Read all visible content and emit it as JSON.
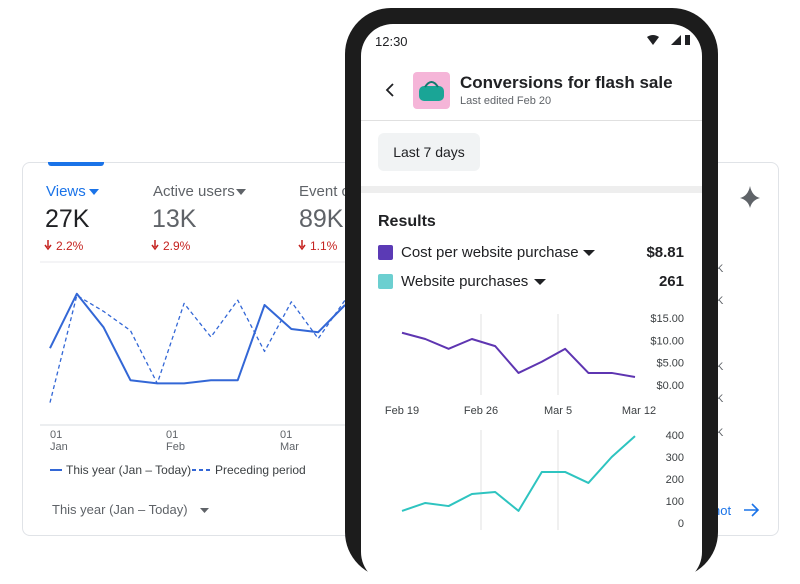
{
  "analytics": {
    "metrics": [
      {
        "label": "Views",
        "value": "27K",
        "change": "2.2%"
      },
      {
        "label": "Active users",
        "value": "13K",
        "change": "2.9%"
      },
      {
        "label": "Event c",
        "value": "89K",
        "change": "1.1%"
      }
    ],
    "chart": {
      "type": "line",
      "ylim": [
        0,
        100
      ],
      "series": [
        {
          "name": "This year (Jan – Today)",
          "color": "#3367d6",
          "style": "solid",
          "values": [
            48,
            82,
            61,
            28,
            26,
            26,
            28,
            28,
            75,
            60,
            58,
            75
          ]
        },
        {
          "name": "Preceding period",
          "color": "#3367d6",
          "style": "dashed",
          "values": [
            14,
            81,
            71,
            59,
            26,
            76,
            55,
            78,
            46,
            77,
            54,
            78
          ]
        }
      ],
      "x_labels": [
        {
          "day": "01",
          "month": "Jan"
        },
        {
          "day": "01",
          "month": "Feb"
        },
        {
          "day": "01",
          "month": "Mar"
        }
      ]
    },
    "period_selector": "This year (Jan – Today)",
    "right_fragments": [
      "K",
      "K",
      "K",
      "K",
      "K"
    ],
    "link": "hot"
  },
  "phone": {
    "status_time": "12:30",
    "title": "Conversions for flash sale",
    "subtitle": "Last edited Feb 20",
    "date_range": "Last 7 days",
    "section_title": "Results",
    "charts": [
      {
        "type": "line",
        "name": "Cost per website purchase",
        "summary": "$8.81",
        "color": "#5e35b1",
        "legend_color": "#5b3ab5",
        "values": [
          11.7,
          10.3,
          8.1,
          10.3,
          8.7,
          2.7,
          5.2,
          8.1,
          2.7,
          2.7,
          1.8
        ],
        "ylim": [
          0,
          15
        ],
        "yticks": [
          {
            "value": 15,
            "label": "$15.00"
          },
          {
            "value": 10,
            "label": "$10.00"
          },
          {
            "value": 5,
            "label": "$5.00"
          },
          {
            "value": 0,
            "label": "$0.00"
          }
        ],
        "x_labels": [
          "Feb 19",
          "Feb 26",
          "Mar 5",
          "Mar 12"
        ]
      },
      {
        "type": "line",
        "name": "Website purchases",
        "summary": "261",
        "color": "#2ec4c0",
        "legend_color": "#6ccfd0",
        "values": [
          55,
          91,
          77,
          132,
          141,
          55,
          232,
          232,
          182,
          300,
          395
        ],
        "ylim": [
          0,
          400
        ],
        "yticks": [
          400,
          300,
          200,
          100,
          0
        ]
      }
    ]
  }
}
